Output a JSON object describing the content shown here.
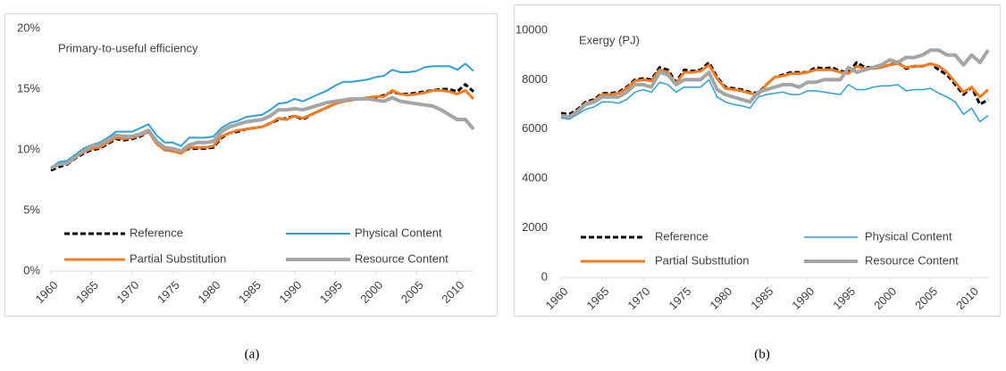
{
  "chart_data": [
    {
      "type": "line",
      "annotation": "Primary-to-useful efficiency",
      "caption": "(a)",
      "x": [
        1960,
        1961,
        1962,
        1963,
        1964,
        1965,
        1966,
        1967,
        1968,
        1969,
        1970,
        1971,
        1972,
        1973,
        1974,
        1975,
        1976,
        1977,
        1978,
        1979,
        1980,
        1981,
        1982,
        1983,
        1984,
        1985,
        1986,
        1987,
        1988,
        1989,
        1990,
        1991,
        1992,
        1993,
        1994,
        1995,
        1996,
        1997,
        1998,
        1999,
        2000,
        2001,
        2002,
        2003,
        2004,
        2005,
        2006,
        2007,
        2008,
        2009,
        2010,
        2011,
        2012
      ],
      "xlim": [
        1960,
        2012
      ],
      "xticks": [
        1960,
        1965,
        1970,
        1975,
        1980,
        1985,
        1990,
        1995,
        2000,
        2005,
        2010
      ],
      "ylim": [
        0,
        20
      ],
      "yticks": [
        {
          "value": 0,
          "label": "0%"
        },
        {
          "value": 5,
          "label": "5%"
        },
        {
          "value": 10,
          "label": "10%"
        },
        {
          "value": 15,
          "label": "15%"
        },
        {
          "value": 20,
          "label": "20%"
        }
      ],
      "series": [
        {
          "name": "Reference",
          "color": "#000000",
          "dashed": true,
          "line_width": 3,
          "values": [
            8.3,
            8.6,
            8.8,
            9.3,
            9.7,
            10.0,
            10.1,
            10.5,
            10.9,
            10.8,
            10.9,
            11.1,
            11.5,
            10.6,
            10.0,
            9.9,
            9.8,
            10.1,
            10.1,
            10.1,
            10.2,
            11.0,
            11.4,
            11.5,
            11.7,
            11.8,
            11.9,
            12.2,
            12.5,
            12.6,
            12.8,
            12.5,
            12.9,
            13.2,
            13.5,
            13.8,
            14.0,
            14.1,
            14.2,
            14.2,
            14.3,
            14.5,
            14.8,
            14.6,
            14.6,
            14.7,
            14.8,
            14.9,
            15.0,
            15.0,
            14.8,
            15.4,
            14.8
          ]
        },
        {
          "name": "Physical Content",
          "color": "#2ea0d6",
          "dashed": false,
          "line_width": 2,
          "values": [
            8.5,
            9.0,
            9.1,
            9.6,
            10.1,
            10.4,
            10.6,
            11.0,
            11.5,
            11.5,
            11.5,
            11.8,
            12.1,
            11.2,
            10.6,
            10.6,
            10.3,
            11.0,
            11.0,
            11.0,
            11.1,
            11.8,
            12.2,
            12.4,
            12.7,
            12.8,
            12.9,
            13.3,
            13.8,
            13.9,
            14.2,
            14.0,
            14.3,
            14.6,
            14.9,
            15.3,
            15.6,
            15.6,
            15.7,
            15.8,
            16.0,
            16.1,
            16.6,
            16.4,
            16.4,
            16.5,
            16.8,
            16.9,
            16.9,
            16.9,
            16.6,
            17.1,
            16.5
          ]
        },
        {
          "name": "Partial Substitution",
          "color": "#f47b20",
          "dashed": false,
          "line_width": 3,
          "values": [
            8.5,
            8.8,
            8.9,
            9.4,
            9.8,
            10.1,
            10.2,
            10.6,
            11.0,
            10.9,
            11.0,
            11.2,
            11.5,
            10.5,
            10.0,
            9.9,
            9.7,
            10.2,
            10.2,
            10.2,
            10.3,
            11.1,
            11.4,
            11.6,
            11.7,
            11.8,
            11.9,
            12.2,
            12.6,
            12.5,
            12.8,
            12.6,
            12.9,
            13.2,
            13.5,
            13.8,
            14.0,
            14.1,
            14.2,
            14.3,
            14.4,
            14.4,
            14.9,
            14.6,
            14.5,
            14.6,
            14.7,
            14.9,
            14.9,
            14.8,
            14.6,
            14.9,
            14.2
          ]
        },
        {
          "name": "Resource Content",
          "color": "#a5a5a5",
          "dashed": false,
          "line_width": 4,
          "values": [
            8.5,
            8.8,
            8.9,
            9.4,
            9.9,
            10.3,
            10.4,
            10.8,
            11.2,
            11.1,
            11.1,
            11.3,
            11.6,
            10.7,
            10.2,
            10.1,
            9.9,
            10.4,
            10.6,
            10.6,
            10.7,
            11.5,
            11.9,
            12.1,
            12.3,
            12.4,
            12.5,
            12.8,
            13.3,
            13.3,
            13.4,
            13.3,
            13.5,
            13.7,
            13.9,
            14.0,
            14.1,
            14.2,
            14.2,
            14.2,
            14.1,
            14.0,
            14.3,
            14.0,
            13.9,
            13.8,
            13.7,
            13.6,
            13.3,
            12.9,
            12.5,
            12.5,
            11.7
          ]
        }
      ]
    },
    {
      "type": "line",
      "annotation": "Exergy (PJ)",
      "caption": "(b)",
      "x": [
        1960,
        1961,
        1962,
        1963,
        1964,
        1965,
        1966,
        1967,
        1968,
        1969,
        1970,
        1971,
        1972,
        1973,
        1974,
        1975,
        1976,
        1977,
        1978,
        1979,
        1980,
        1981,
        1982,
        1983,
        1984,
        1985,
        1986,
        1987,
        1988,
        1989,
        1990,
        1991,
        1992,
        1993,
        1994,
        1995,
        1996,
        1997,
        1998,
        1999,
        2000,
        2001,
        2002,
        2003,
        2004,
        2005,
        2006,
        2007,
        2008,
        2009,
        2010,
        2011,
        2012
      ],
      "xlim": [
        1960,
        2012
      ],
      "xticks": [
        1960,
        1965,
        1970,
        1975,
        1980,
        1985,
        1990,
        1995,
        2000,
        2005,
        2010
      ],
      "ylim": [
        0,
        10000
      ],
      "yticks": [
        0,
        2000,
        4000,
        6000,
        8000,
        10000
      ],
      "series": [
        {
          "name": "Reference",
          "color": "#000000",
          "dashed": true,
          "line_width": 3,
          "values": [
            6650,
            6600,
            6800,
            7100,
            7200,
            7450,
            7450,
            7500,
            7700,
            8000,
            8050,
            8000,
            8500,
            8400,
            7900,
            8400,
            8350,
            8400,
            8700,
            8100,
            7700,
            7650,
            7600,
            7500,
            7450,
            7800,
            8100,
            8200,
            8300,
            8300,
            8300,
            8500,
            8450,
            8500,
            8350,
            8300,
            8700,
            8500,
            8500,
            8500,
            8600,
            8700,
            8450,
            8550,
            8550,
            8650,
            8400,
            8200,
            7800,
            7400,
            7700,
            7000,
            7200
          ]
        },
        {
          "name": "Physical Content",
          "color": "#2ea0d6",
          "dashed": false,
          "line_width": 1.5,
          "values": [
            6450,
            6400,
            6600,
            6800,
            6900,
            7100,
            7100,
            7050,
            7200,
            7500,
            7600,
            7500,
            7900,
            7800,
            7500,
            7700,
            7700,
            7700,
            8000,
            7300,
            7100,
            7000,
            6950,
            6850,
            7300,
            7400,
            7450,
            7500,
            7400,
            7400,
            7550,
            7550,
            7500,
            7450,
            7400,
            7800,
            7600,
            7600,
            7700,
            7750,
            7750,
            7800,
            7550,
            7600,
            7600,
            7650,
            7450,
            7300,
            7100,
            6600,
            6850,
            6300,
            6550
          ]
        },
        {
          "name": "Partial Substtution",
          "color": "#f47b20",
          "dashed": false,
          "line_width": 3,
          "values": [
            6550,
            6500,
            6750,
            7050,
            7150,
            7400,
            7400,
            7450,
            7650,
            7950,
            8000,
            7950,
            8400,
            8300,
            7850,
            8300,
            8300,
            8350,
            8600,
            8050,
            7650,
            7600,
            7550,
            7450,
            7400,
            7800,
            8100,
            8150,
            8250,
            8250,
            8300,
            8400,
            8400,
            8400,
            8300,
            8250,
            8550,
            8450,
            8450,
            8500,
            8600,
            8650,
            8500,
            8550,
            8550,
            8650,
            8550,
            8300,
            7900,
            7500,
            7700,
            7300,
            7600
          ]
        },
        {
          "name": "Resource Content",
          "color": "#a5a5a5",
          "dashed": false,
          "line_width": 4,
          "values": [
            6550,
            6500,
            6700,
            7000,
            7100,
            7300,
            7300,
            7300,
            7500,
            7800,
            7800,
            7700,
            8300,
            8200,
            7800,
            8000,
            8000,
            8000,
            8300,
            7600,
            7400,
            7300,
            7200,
            7100,
            7500,
            7600,
            7700,
            7800,
            7800,
            7700,
            7900,
            7900,
            8000,
            8000,
            8000,
            8500,
            8300,
            8400,
            8500,
            8600,
            8800,
            8700,
            8900,
            8900,
            9000,
            9200,
            9200,
            9000,
            9000,
            8600,
            9000,
            8700,
            9200
          ]
        }
      ]
    }
  ]
}
